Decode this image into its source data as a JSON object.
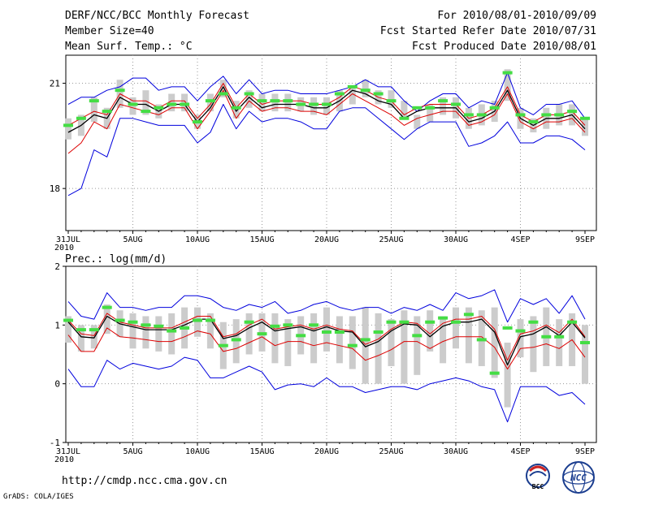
{
  "header": {
    "title": "DERF/NCC/BCC Monthly Forecast",
    "member_size": "Member Size=40",
    "variable": "Mean Surf. Temp.: °C",
    "period": "For 2010/08/01-2010/09/09",
    "fcst_started": "Fcst Started Refer Date 2010/07/31",
    "fcst_produced": "Fcst Produced Date 2010/08/01"
  },
  "footer": {
    "url": "http://cmdp.ncc.cma.gov.cn",
    "grads_credit": "GrADS: COLA/IGES",
    "logo_bcc": "BCC",
    "logo_ncc": "NCC"
  },
  "colors": {
    "box": "#cccccc",
    "mean": "#44dd44",
    "black": "#000000",
    "red": "#dd0000",
    "blue": "#0000dd",
    "grid": "#999999"
  },
  "chart_data": [
    {
      "type": "line",
      "title": "Mean Surf. Temp.: °C",
      "x_tick_labels": [
        "31JUL",
        "5AUG",
        "10AUG",
        "15AUG",
        "20AUG",
        "25AUG",
        "30AUG",
        "4SEP",
        "9SEP"
      ],
      "x_year_label": "2010",
      "ylim": [
        16.8,
        21.8
      ],
      "y_ticks": [
        18,
        21
      ],
      "days": [
        0,
        1,
        2,
        3,
        4,
        5,
        6,
        7,
        8,
        9,
        10,
        11,
        12,
        13,
        14,
        15,
        16,
        17,
        18,
        19,
        20,
        21,
        22,
        23,
        24,
        25,
        26,
        27,
        28,
        29,
        30,
        31,
        32,
        33,
        34,
        35,
        36,
        37,
        38,
        39,
        40
      ],
      "series": [
        {
          "name": "ensemble_upper",
          "color": "#0000dd",
          "values": [
            20.4,
            20.6,
            20.6,
            20.8,
            20.9,
            21.15,
            21.15,
            20.8,
            20.9,
            20.9,
            20.5,
            20.9,
            21.2,
            20.7,
            21.1,
            20.7,
            20.8,
            20.8,
            20.7,
            20.7,
            20.7,
            20.8,
            20.9,
            21.1,
            20.9,
            20.9,
            20.5,
            20.2,
            20.5,
            20.7,
            20.7,
            20.3,
            20.5,
            20.4,
            21.3,
            20.3,
            20.1,
            20.4,
            20.4,
            20.5,
            20.0
          ]
        },
        {
          "name": "box_high",
          "color": "#cccccc",
          "values": [
            20.0,
            20.1,
            20.6,
            20.3,
            21.1,
            20.6,
            20.8,
            20.4,
            20.7,
            20.7,
            20.1,
            20.7,
            21.1,
            20.5,
            20.8,
            20.7,
            20.7,
            20.7,
            20.6,
            20.6,
            20.6,
            20.8,
            20.9,
            21.1,
            20.8,
            20.8,
            20.5,
            20.1,
            20.4,
            20.6,
            20.6,
            20.3,
            20.4,
            20.5,
            21.4,
            20.3,
            20.0,
            20.3,
            20.4,
            20.4,
            20.0
          ]
        },
        {
          "name": "box_low",
          "color": "#cccccc",
          "values": [
            19.4,
            19.5,
            19.9,
            19.7,
            20.3,
            20.1,
            20.1,
            20.0,
            20.2,
            20.2,
            19.7,
            20.2,
            20.6,
            20.0,
            20.3,
            20.2,
            20.2,
            20.2,
            20.2,
            20.1,
            20.1,
            20.2,
            20.4,
            20.6,
            20.4,
            20.3,
            20.0,
            19.7,
            19.9,
            20.1,
            20.0,
            19.7,
            19.8,
            19.9,
            20.5,
            19.7,
            19.6,
            19.7,
            19.8,
            19.8,
            19.5
          ]
        },
        {
          "name": "ensemble_mean",
          "color": "#44dd44",
          "values": [
            19.8,
            20.0,
            20.5,
            20.2,
            20.8,
            20.4,
            20.2,
            20.3,
            20.4,
            20.4,
            19.9,
            20.5,
            20.7,
            20.3,
            20.7,
            20.5,
            20.5,
            20.5,
            20.4,
            20.4,
            20.4,
            20.7,
            20.9,
            20.8,
            20.7,
            20.5,
            20.0,
            20.3,
            20.3,
            20.5,
            20.4,
            20.1,
            20.1,
            20.3,
            21.3,
            20.1,
            19.9,
            20.1,
            20.1,
            20.2,
            20.0
          ]
        },
        {
          "name": "black_mid",
          "color": "#000000",
          "values": [
            19.6,
            19.8,
            20.1,
            20.0,
            20.6,
            20.4,
            20.4,
            20.2,
            20.4,
            20.4,
            19.9,
            20.3,
            20.9,
            20.2,
            20.6,
            20.3,
            20.4,
            20.4,
            20.4,
            20.3,
            20.3,
            20.5,
            20.8,
            20.7,
            20.5,
            20.4,
            20.0,
            20.2,
            20.3,
            20.3,
            20.3,
            19.9,
            20.0,
            20.2,
            20.8,
            20.0,
            19.8,
            20.0,
            20.0,
            20.1,
            19.7
          ]
        },
        {
          "name": "red_upper",
          "color": "#dd0000",
          "values": [
            19.8,
            20.0,
            20.2,
            20.1,
            20.7,
            20.5,
            20.5,
            20.3,
            20.5,
            20.5,
            20.0,
            20.4,
            21.0,
            20.3,
            20.7,
            20.4,
            20.5,
            20.5,
            20.5,
            20.4,
            20.4,
            20.6,
            20.9,
            20.8,
            20.6,
            20.5,
            20.1,
            20.3,
            20.4,
            20.4,
            20.4,
            20.0,
            20.1,
            20.3,
            20.9,
            20.1,
            19.9,
            20.1,
            20.1,
            20.2,
            19.8
          ]
        },
        {
          "name": "red_lower",
          "color": "#dd0000",
          "values": [
            19.0,
            19.3,
            19.9,
            19.7,
            20.4,
            20.3,
            20.2,
            20.1,
            20.3,
            20.3,
            19.7,
            20.2,
            20.8,
            20.0,
            20.5,
            20.2,
            20.3,
            20.3,
            20.2,
            20.2,
            20.1,
            20.4,
            20.7,
            20.5,
            20.3,
            20.1,
            19.8,
            20.0,
            20.1,
            20.2,
            20.2,
            19.8,
            19.9,
            20.1,
            20.7,
            19.9,
            19.7,
            19.9,
            19.9,
            20.0,
            19.6
          ]
        },
        {
          "name": "ensemble_lower",
          "color": "#0000dd",
          "values": [
            17.8,
            18.0,
            19.1,
            18.9,
            20.0,
            20.0,
            19.9,
            19.8,
            19.8,
            19.8,
            19.3,
            19.6,
            20.4,
            19.7,
            20.2,
            19.9,
            20.0,
            20.0,
            19.9,
            19.7,
            19.7,
            20.2,
            20.3,
            20.3,
            20.0,
            19.7,
            19.4,
            19.7,
            19.9,
            19.9,
            19.9,
            19.2,
            19.3,
            19.5,
            19.9,
            19.3,
            19.3,
            19.5,
            19.5,
            19.4,
            19.1
          ]
        }
      ]
    },
    {
      "type": "line",
      "title": "Prec.: log(mm/d)",
      "x_tick_labels": [
        "31JUL",
        "5AUG",
        "10AUG",
        "15AUG",
        "20AUG",
        "25AUG",
        "30AUG",
        "4SEP",
        "9SEP"
      ],
      "x_year_label": "2010",
      "ylim": [
        -1,
        2
      ],
      "y_ticks": [
        -1,
        0,
        1,
        2
      ],
      "days": [
        0,
        1,
        2,
        3,
        4,
        5,
        6,
        7,
        8,
        9,
        10,
        11,
        12,
        13,
        14,
        15,
        16,
        17,
        18,
        19,
        20,
        21,
        22,
        23,
        24,
        25,
        26,
        27,
        28,
        29,
        30,
        31,
        32,
        33,
        34,
        35,
        36,
        37,
        38,
        39,
        40
      ],
      "series": [
        {
          "name": "ensemble_upper",
          "color": "#0000dd",
          "values": [
            1.4,
            1.15,
            1.1,
            1.55,
            1.3,
            1.3,
            1.25,
            1.3,
            1.3,
            1.5,
            1.5,
            1.45,
            1.3,
            1.25,
            1.35,
            1.3,
            1.4,
            1.2,
            1.25,
            1.35,
            1.4,
            1.3,
            1.25,
            1.3,
            1.3,
            1.2,
            1.3,
            1.25,
            1.35,
            1.25,
            1.55,
            1.45,
            1.5,
            1.6,
            1.05,
            1.45,
            1.35,
            1.45,
            1.2,
            1.5,
            1.1
          ]
        },
        {
          "name": "box_high",
          "color": "#cccccc",
          "values": [
            1.15,
            1.0,
            1.0,
            1.35,
            1.25,
            1.2,
            1.15,
            1.15,
            1.2,
            1.3,
            1.3,
            1.2,
            1.05,
            1.1,
            1.2,
            1.2,
            1.2,
            1.1,
            1.15,
            1.2,
            1.3,
            1.15,
            1.15,
            1.3,
            1.2,
            1.1,
            1.25,
            1.15,
            1.25,
            1.15,
            1.3,
            1.3,
            1.25,
            1.3,
            0.7,
            1.1,
            1.15,
            1.3,
            1.1,
            1.2,
            1.0
          ]
        },
        {
          "name": "box_low",
          "color": "#cccccc",
          "values": [
            0.7,
            0.55,
            0.6,
            0.85,
            0.8,
            0.6,
            0.6,
            0.55,
            0.5,
            0.6,
            0.8,
            0.6,
            0.25,
            0.35,
            0.5,
            0.55,
            0.35,
            0.3,
            0.5,
            0.35,
            0.55,
            0.35,
            0.25,
            0.0,
            0.0,
            0.3,
            0.0,
            0.15,
            0.55,
            0.35,
            0.6,
            0.35,
            0.3,
            0.1,
            -0.4,
            0.45,
            0.2,
            0.3,
            0.3,
            0.3,
            0.0
          ]
        },
        {
          "name": "ensemble_mean",
          "color": "#44dd44",
          "values": [
            1.08,
            0.92,
            0.92,
            1.3,
            1.08,
            1.05,
            1.0,
            0.98,
            0.9,
            0.95,
            1.08,
            1.08,
            0.65,
            0.75,
            1.05,
            0.85,
            0.98,
            1.0,
            0.82,
            1.0,
            0.88,
            0.88,
            0.65,
            0.75,
            0.88,
            1.05,
            1.05,
            0.82,
            1.05,
            1.12,
            1.05,
            1.18,
            0.75,
            0.18,
            0.95,
            0.9,
            1.05,
            0.8,
            0.8,
            1.05,
            0.7
          ]
        },
        {
          "name": "black_mid",
          "color": "#000000",
          "values": [
            1.05,
            0.8,
            0.78,
            1.15,
            1.02,
            0.97,
            0.92,
            0.92,
            0.92,
            1.0,
            1.1,
            1.1,
            0.77,
            0.82,
            0.95,
            1.05,
            0.9,
            0.94,
            0.97,
            0.9,
            0.97,
            0.9,
            0.88,
            0.63,
            0.72,
            0.9,
            1.02,
            1.0,
            0.8,
            0.98,
            1.05,
            1.05,
            1.1,
            0.88,
            0.32,
            0.8,
            0.85,
            0.97,
            0.82,
            1.05,
            0.78
          ]
        },
        {
          "name": "red_upper",
          "color": "#dd0000",
          "values": [
            1.08,
            0.85,
            0.82,
            1.2,
            1.05,
            1.0,
            0.95,
            0.95,
            0.95,
            1.05,
            1.15,
            1.15,
            0.8,
            0.85,
            1.0,
            1.1,
            0.93,
            0.97,
            1.0,
            0.93,
            1.0,
            0.93,
            0.9,
            0.67,
            0.76,
            0.93,
            1.05,
            1.03,
            0.85,
            1.03,
            1.1,
            1.1,
            1.15,
            0.93,
            0.4,
            0.85,
            0.9,
            1.0,
            0.87,
            1.1,
            0.8
          ]
        },
        {
          "name": "red_lower",
          "color": "#dd0000",
          "values": [
            0.83,
            0.55,
            0.55,
            0.95,
            0.8,
            0.78,
            0.75,
            0.72,
            0.72,
            0.8,
            0.9,
            0.85,
            0.55,
            0.6,
            0.7,
            0.8,
            0.65,
            0.72,
            0.72,
            0.65,
            0.7,
            0.65,
            0.6,
            0.4,
            0.48,
            0.58,
            0.72,
            0.72,
            0.6,
            0.72,
            0.8,
            0.8,
            0.8,
            0.62,
            0.25,
            0.6,
            0.62,
            0.68,
            0.6,
            0.75,
            0.45
          ]
        },
        {
          "name": "ensemble_lower",
          "color": "#0000dd",
          "values": [
            0.25,
            -0.05,
            -0.05,
            0.4,
            0.25,
            0.35,
            0.3,
            0.25,
            0.3,
            0.45,
            0.4,
            0.1,
            0.1,
            0.2,
            0.3,
            0.2,
            -0.1,
            -0.02,
            0.0,
            -0.05,
            0.1,
            -0.05,
            -0.05,
            -0.15,
            -0.1,
            -0.05,
            -0.05,
            -0.1,
            0.0,
            0.05,
            0.1,
            0.05,
            -0.05,
            -0.1,
            -0.65,
            -0.05,
            -0.05,
            -0.05,
            -0.2,
            -0.15,
            -0.35
          ]
        }
      ]
    }
  ]
}
